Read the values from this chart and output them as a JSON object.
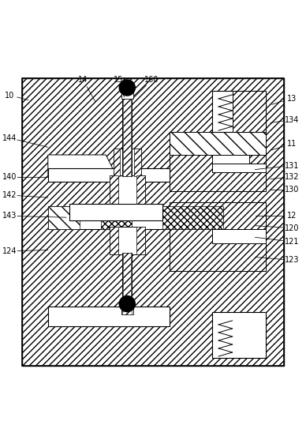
{
  "background_color": "#ffffff",
  "fig_width": 3.88,
  "fig_height": 5.62,
  "label_positions": {
    "10": [
      0.03,
      0.915,
      0.09,
      0.9
    ],
    "14": [
      0.27,
      0.965,
      0.31,
      0.895
    ],
    "15": [
      0.385,
      0.965,
      0.405,
      0.91
    ],
    "160": [
      0.495,
      0.965,
      0.435,
      0.905
    ],
    "13": [
      0.955,
      0.905,
      0.89,
      0.885
    ],
    "134": [
      0.955,
      0.835,
      0.885,
      0.825
    ],
    "11": [
      0.955,
      0.755,
      0.885,
      0.735
    ],
    "131": [
      0.955,
      0.685,
      0.835,
      0.672
    ],
    "132": [
      0.955,
      0.647,
      0.885,
      0.641
    ],
    "130": [
      0.955,
      0.607,
      0.885,
      0.607
    ],
    "12": [
      0.955,
      0.52,
      0.835,
      0.52
    ],
    "120": [
      0.955,
      0.48,
      0.835,
      0.488
    ],
    "121": [
      0.955,
      0.435,
      0.835,
      0.45
    ],
    "123": [
      0.955,
      0.375,
      0.835,
      0.385
    ],
    "144": [
      0.03,
      0.775,
      0.155,
      0.745
    ],
    "140": [
      0.03,
      0.648,
      0.155,
      0.648
    ],
    "142": [
      0.03,
      0.588,
      0.155,
      0.58
    ],
    "143": [
      0.03,
      0.52,
      0.215,
      0.515
    ],
    "124": [
      0.03,
      0.405,
      0.155,
      0.408
    ]
  }
}
